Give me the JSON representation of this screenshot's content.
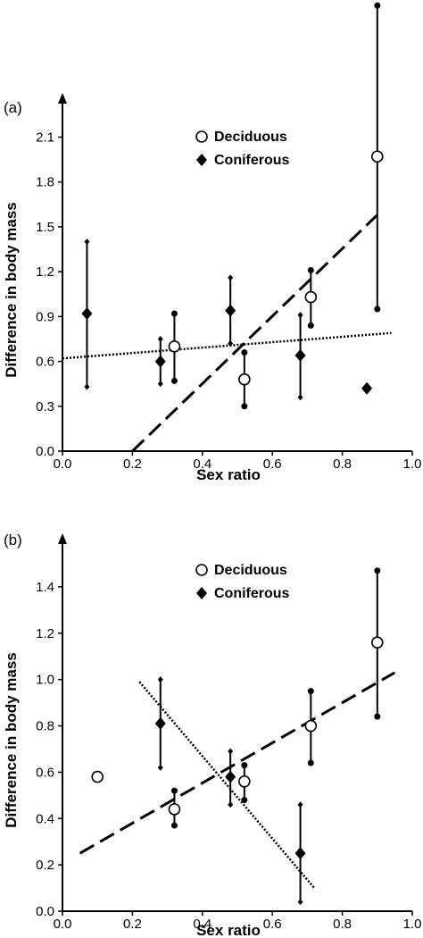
{
  "chart_data": [
    {
      "panel_label": "(a)",
      "type": "scatter",
      "xlabel": "Sex ratio",
      "ylabel": "Difference in body mass",
      "xlim": [
        0,
        1.0
      ],
      "ylim": [
        0,
        2.3
      ],
      "xticks": [
        "0.0",
        "0.2",
        "0.4",
        "0.6",
        "0.8",
        "1.0"
      ],
      "yticks": [
        "0.0",
        "0.3",
        "0.6",
        "0.9",
        "1.2",
        "1.5",
        "1.8",
        "2.1"
      ],
      "legend": {
        "position": "top-center",
        "deciduous_label": "Deciduous",
        "coniferous_label": "Coniferous"
      },
      "series": [
        {
          "name": "Deciduous",
          "marker": "open-circle",
          "points": [
            {
              "x": 0.32,
              "y": 0.7,
              "lo": 0.47,
              "hi": 0.92
            },
            {
              "x": 0.52,
              "y": 0.48,
              "lo": 0.3,
              "hi": 0.66
            },
            {
              "x": 0.71,
              "y": 1.03,
              "lo": 0.84,
              "hi": 1.21
            },
            {
              "x": 0.9,
              "y": 1.97,
              "lo": 0.95,
              "hi": 2.98
            }
          ],
          "trend": {
            "style": "dashed",
            "x": [
              0.2,
              0.9
            ],
            "y": [
              0.0,
              1.58
            ]
          }
        },
        {
          "name": "Coniferous",
          "marker": "filled-diamond",
          "points": [
            {
              "x": 0.07,
              "y": 0.92,
              "lo": 0.43,
              "hi": 1.4
            },
            {
              "x": 0.28,
              "y": 0.6,
              "lo": 0.45,
              "hi": 0.75
            },
            {
              "x": 0.48,
              "y": 0.94,
              "lo": 0.72,
              "hi": 1.16
            },
            {
              "x": 0.68,
              "y": 0.64,
              "lo": 0.36,
              "hi": 0.91
            },
            {
              "x": 0.87,
              "y": 0.42,
              "lo": null,
              "hi": null
            }
          ],
          "trend": {
            "style": "dotted",
            "x": [
              0.0,
              0.94
            ],
            "y": [
              0.62,
              0.79
            ]
          }
        }
      ]
    },
    {
      "panel_label": "(b)",
      "type": "scatter",
      "xlabel": "Sex ratio",
      "ylabel": "Difference in body mass",
      "xlim": [
        0,
        1.0
      ],
      "ylim": [
        0,
        1.55
      ],
      "xticks": [
        "0.0",
        "0.2",
        "0.4",
        "0.6",
        "0.8",
        "1.0"
      ],
      "yticks": [
        "0.0",
        "0.2",
        "0.4",
        "0.6",
        "0.8",
        "1.0",
        "1.2",
        "1.4"
      ],
      "legend": {
        "position": "top-center",
        "deciduous_label": "Deciduous",
        "coniferous_label": "Coniferous"
      },
      "series": [
        {
          "name": "Deciduous",
          "marker": "open-circle",
          "points": [
            {
              "x": 0.1,
              "y": 0.58,
              "lo": null,
              "hi": null
            },
            {
              "x": 0.32,
              "y": 0.44,
              "lo": 0.37,
              "hi": 0.52
            },
            {
              "x": 0.52,
              "y": 0.56,
              "lo": 0.48,
              "hi": 0.63
            },
            {
              "x": 0.71,
              "y": 0.8,
              "lo": 0.64,
              "hi": 0.95
            },
            {
              "x": 0.9,
              "y": 1.16,
              "lo": 0.84,
              "hi": 1.47
            }
          ],
          "trend": {
            "style": "dashed",
            "x": [
              0.05,
              0.95
            ],
            "y": [
              0.25,
              1.03
            ]
          }
        },
        {
          "name": "Coniferous",
          "marker": "filled-diamond",
          "points": [
            {
              "x": 0.28,
              "y": 0.81,
              "lo": 0.62,
              "hi": 1.0
            },
            {
              "x": 0.48,
              "y": 0.58,
              "lo": 0.46,
              "hi": 0.69
            },
            {
              "x": 0.68,
              "y": 0.25,
              "lo": 0.04,
              "hi": 0.46
            }
          ],
          "trend": {
            "style": "dotted",
            "x": [
              0.22,
              0.72
            ],
            "y": [
              0.99,
              0.1
            ]
          }
        }
      ]
    }
  ]
}
